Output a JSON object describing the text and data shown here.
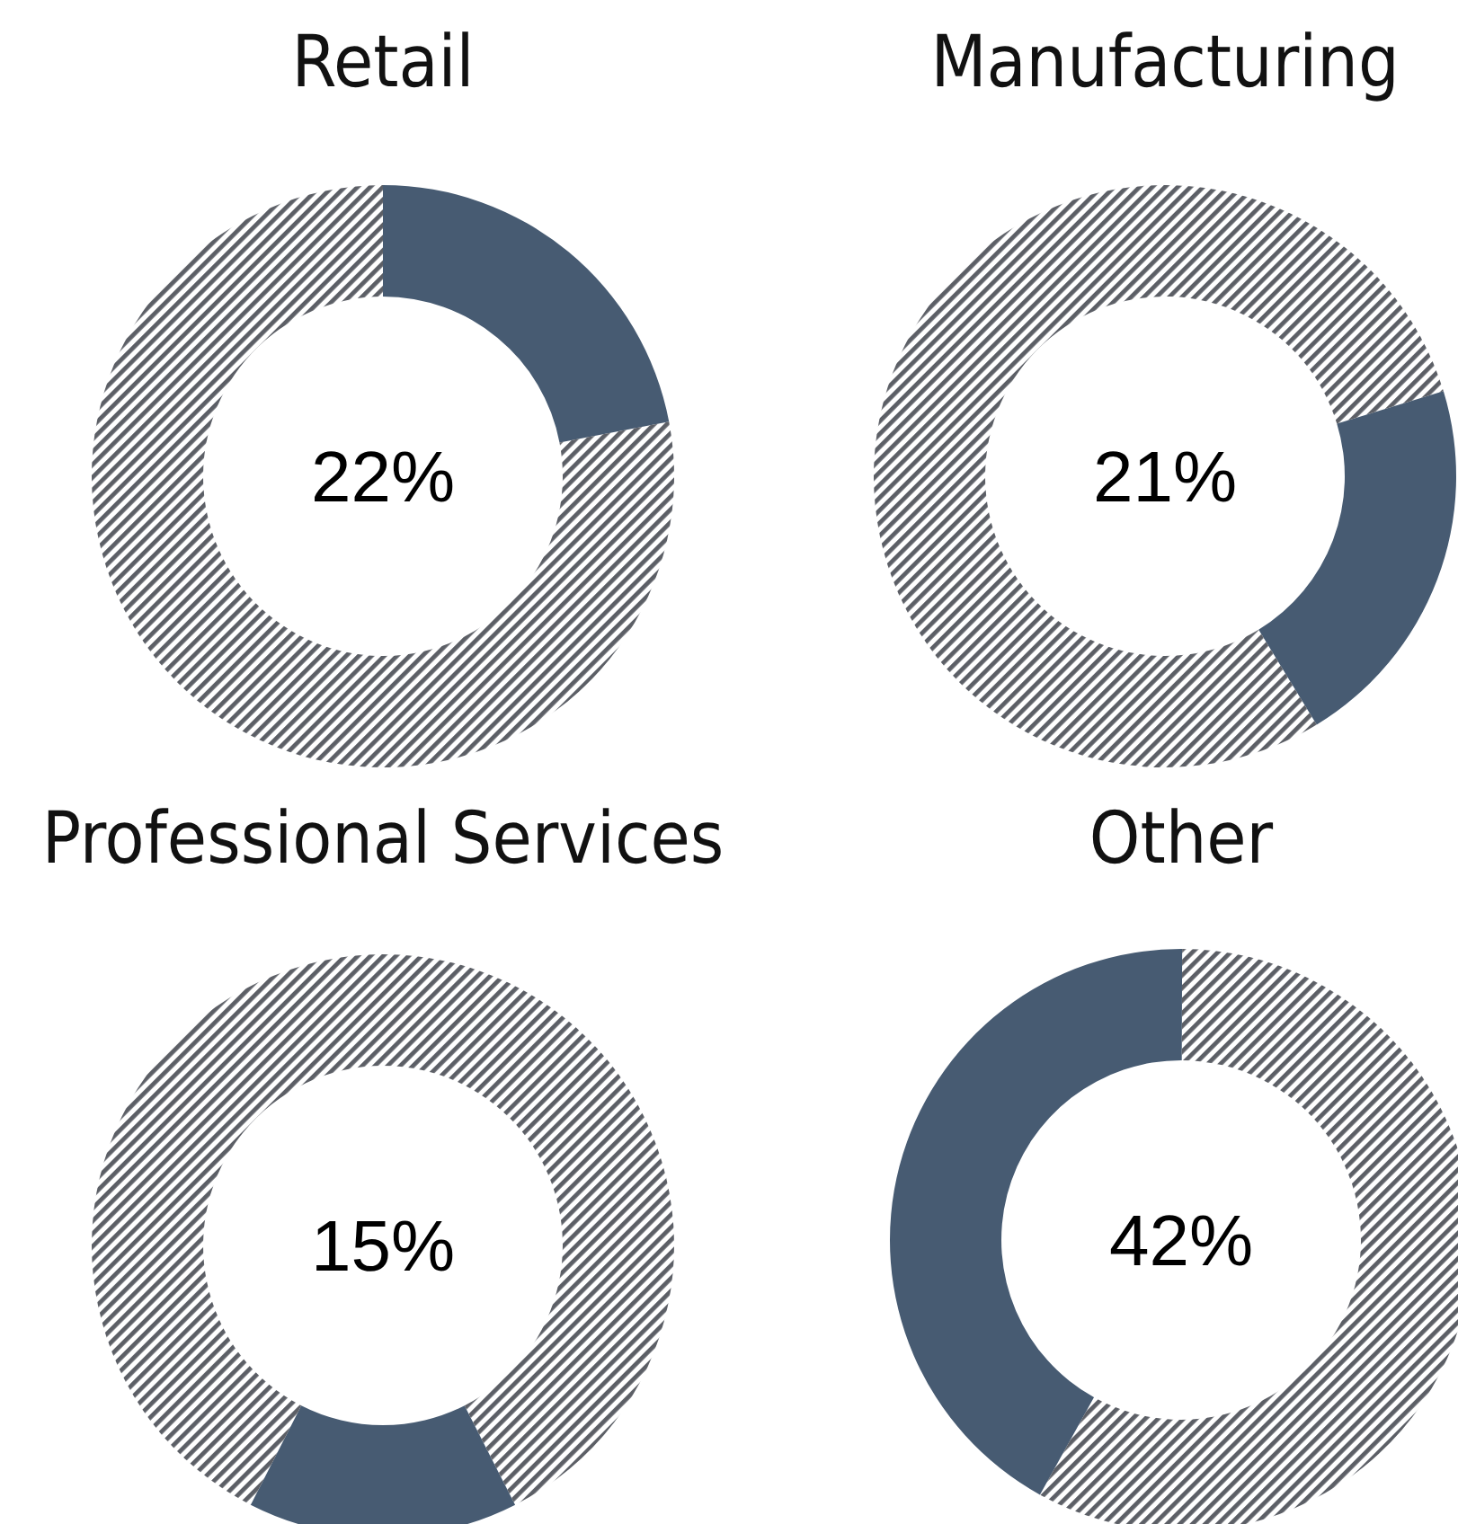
{
  "chart_data": [
    {
      "type": "donut",
      "title": "Retail",
      "categories": [
        null,
        null
      ],
      "values": [
        22,
        78
      ],
      "colors": [
        "#475b72",
        "#5c5f66"
      ],
      "annotations": [
        "22%"
      ]
    },
    {
      "type": "donut",
      "title": "Manufacturing",
      "categories": [
        null,
        null
      ],
      "values": [
        21,
        79
      ],
      "colors": [
        "#475b72",
        "#5c5f66"
      ],
      "annotations": [
        "21%"
      ]
    },
    {
      "type": "donut",
      "title": "Professional Services",
      "categories": [
        null,
        null
      ],
      "values": [
        15,
        85
      ],
      "colors": [
        "#475b72",
        "#5c5f66"
      ],
      "annotations": [
        "15%"
      ]
    },
    {
      "type": "donut",
      "title": "Other",
      "categories": [
        null,
        null
      ],
      "values": [
        42,
        58
      ],
      "colors": [
        "#475b72",
        "#5c5f66"
      ],
      "annotations": [
        "42%"
      ]
    }
  ]
}
